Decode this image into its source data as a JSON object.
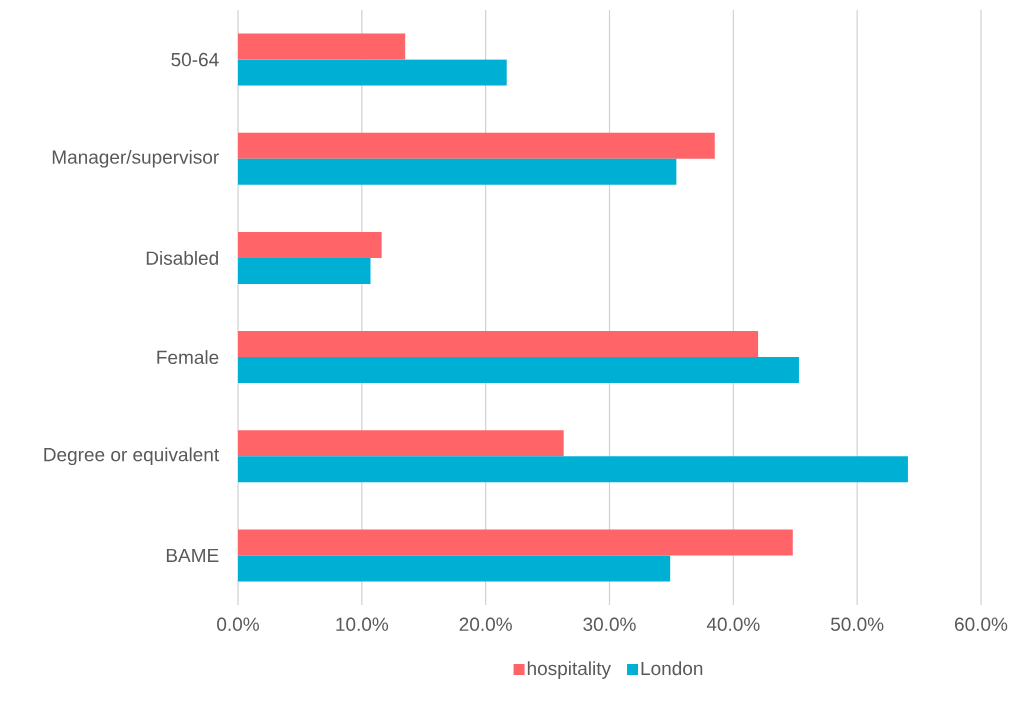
{
  "chart_data": {
    "type": "bar",
    "orientation": "horizontal",
    "categories": [
      "50-64",
      "Manager/supervisor",
      "Disabled",
      "Female",
      "Degree or equivalent",
      "BAME"
    ],
    "series": [
      {
        "name": "hospitality",
        "color": "#ff6469",
        "values": [
          13.5,
          38.5,
          11.6,
          42.0,
          26.3,
          44.8
        ]
      },
      {
        "name": "London",
        "color": "#00b0d4",
        "values": [
          21.7,
          35.4,
          10.7,
          45.3,
          54.1,
          34.9
        ]
      }
    ],
    "xlim": [
      0,
      60
    ],
    "xticks": [
      {
        "value": 0,
        "label": "0.0%"
      },
      {
        "value": 10,
        "label": "10.0%"
      },
      {
        "value": 20,
        "label": "20.0%"
      },
      {
        "value": 30,
        "label": "30.0%"
      },
      {
        "value": 40,
        "label": "40.0%"
      },
      {
        "value": 50,
        "label": "50.0%"
      },
      {
        "value": 60,
        "label": "60.0%"
      }
    ],
    "grid": "x",
    "legend": "bottom"
  }
}
